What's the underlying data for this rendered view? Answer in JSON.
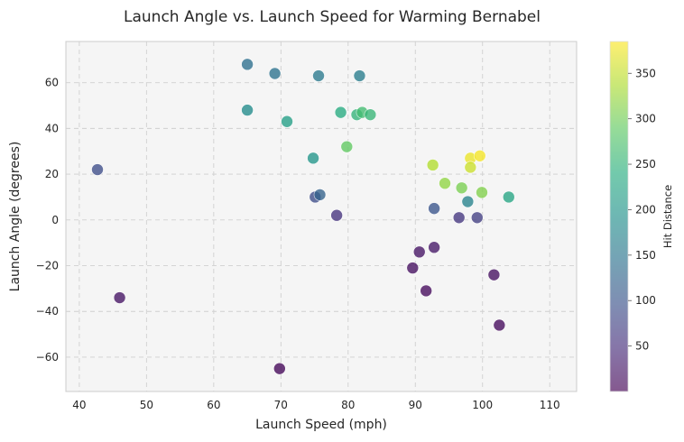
{
  "chart_data": {
    "type": "scatter",
    "title": "Launch Angle vs. Launch Speed for Warming Bernabel",
    "xlabel": "Launch Speed (mph)",
    "ylabel": "Launch Angle (degrees)",
    "xlim": [
      38,
      114
    ],
    "ylim": [
      -75,
      78
    ],
    "xticks": [
      40,
      50,
      60,
      70,
      80,
      90,
      100,
      110
    ],
    "yticks": [
      -60,
      -40,
      -20,
      0,
      20,
      40,
      60
    ],
    "grid": true,
    "colorbar": {
      "label": "Hit Distance",
      "range": [
        0,
        385
      ],
      "ticks": [
        50,
        100,
        150,
        200,
        250,
        300,
        350
      ],
      "colormap": "viridis"
    },
    "points": [
      {
        "x": 42.7,
        "y": 22,
        "distance": 90
      },
      {
        "x": 46.0,
        "y": -34,
        "distance": 20
      },
      {
        "x": 65.0,
        "y": 68,
        "distance": 140
      },
      {
        "x": 65.0,
        "y": 48,
        "distance": 185
      },
      {
        "x": 69.1,
        "y": 64,
        "distance": 145
      },
      {
        "x": 69.8,
        "y": -65,
        "distance": 5
      },
      {
        "x": 70.9,
        "y": 43,
        "distance": 215
      },
      {
        "x": 74.8,
        "y": 27,
        "distance": 200
      },
      {
        "x": 75.1,
        "y": 10,
        "distance": 90
      },
      {
        "x": 75.6,
        "y": 63,
        "distance": 155
      },
      {
        "x": 75.8,
        "y": 11,
        "distance": 120
      },
      {
        "x": 78.3,
        "y": 2,
        "distance": 55
      },
      {
        "x": 78.9,
        "y": 47,
        "distance": 235
      },
      {
        "x": 79.8,
        "y": 32,
        "distance": 290
      },
      {
        "x": 81.3,
        "y": 46,
        "distance": 250
      },
      {
        "x": 81.7,
        "y": 63,
        "distance": 160
      },
      {
        "x": 82.1,
        "y": 47,
        "distance": 265
      },
      {
        "x": 83.3,
        "y": 46,
        "distance": 255
      },
      {
        "x": 89.6,
        "y": -21,
        "distance": 15
      },
      {
        "x": 90.6,
        "y": -14,
        "distance": 20
      },
      {
        "x": 91.6,
        "y": -31,
        "distance": 10
      },
      {
        "x": 92.6,
        "y": 24,
        "distance": 340
      },
      {
        "x": 92.8,
        "y": -12,
        "distance": 25
      },
      {
        "x": 92.8,
        "y": 5,
        "distance": 100
      },
      {
        "x": 94.4,
        "y": 16,
        "distance": 320
      },
      {
        "x": 96.5,
        "y": 1,
        "distance": 60
      },
      {
        "x": 96.9,
        "y": 14,
        "distance": 305
      },
      {
        "x": 97.8,
        "y": 8,
        "distance": 170
      },
      {
        "x": 98.2,
        "y": 27,
        "distance": 375
      },
      {
        "x": 98.2,
        "y": 23,
        "distance": 355
      },
      {
        "x": 99.2,
        "y": 1,
        "distance": 70
      },
      {
        "x": 99.6,
        "y": 28,
        "distance": 380
      },
      {
        "x": 99.9,
        "y": 12,
        "distance": 310
      },
      {
        "x": 101.7,
        "y": -24,
        "distance": 15
      },
      {
        "x": 102.5,
        "y": -46,
        "distance": 10
      },
      {
        "x": 103.9,
        "y": 10,
        "distance": 225
      }
    ]
  }
}
